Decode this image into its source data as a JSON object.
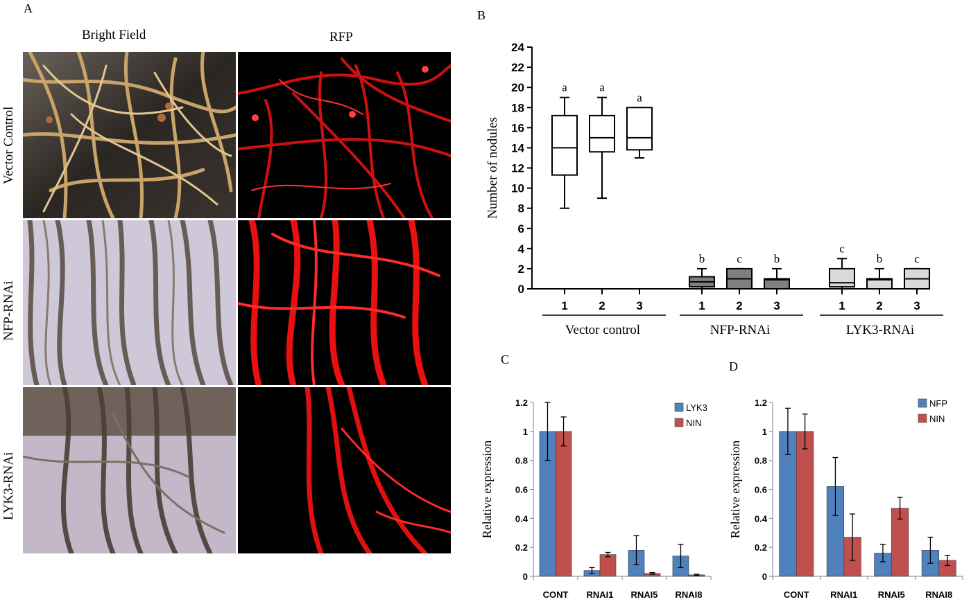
{
  "panels": {
    "a": {
      "letter": "A",
      "col_titles": [
        "Bright Field",
        "RFP"
      ],
      "row_labels": [
        "Vector Control",
        "NFP-RNAi",
        "LYK3-RNAi"
      ]
    },
    "b": {
      "letter": "B"
    },
    "c": {
      "letter": "C"
    },
    "d": {
      "letter": "D"
    }
  },
  "colors": {
    "blue": "#4f81bd",
    "red": "#c0504d",
    "rfp_root": "#e01010",
    "dark_gray_box": "#7f7f7f",
    "light_gray_box": "#d9d9d9",
    "bright_field_bg_row1": "#2a2622",
    "bright_field_bg_row2": "#cfc8d8",
    "bright_field_bg_row3": "#c2b8c8"
  },
  "chart_data": [
    {
      "id": "B",
      "type": "box",
      "ylabel": "Number of nodules",
      "ylim": [
        0,
        24
      ],
      "yticks": [
        0,
        2,
        4,
        6,
        8,
        10,
        12,
        14,
        16,
        18,
        20,
        22,
        24
      ],
      "groups": [
        {
          "label": "Vector control",
          "fill": "#ffffff",
          "boxes": [
            {
              "x": "1",
              "min": 8,
              "q1": 11.3,
              "median": 14,
              "q3": 17.2,
              "max": 19,
              "letter": "a"
            },
            {
              "x": "2",
              "min": 9,
              "q1": 13.6,
              "median": 15,
              "q3": 17.2,
              "max": 19,
              "letter": "a"
            },
            {
              "x": "3",
              "min": 13,
              "q1": 13.8,
              "median": 15,
              "q3": 18,
              "max": 18,
              "letter": "a"
            }
          ]
        },
        {
          "label": "NFP-RNAi",
          "fill": "#7f7f7f",
          "boxes": [
            {
              "x": "1",
              "min": 0,
              "q1": 0.2,
              "median": 0.7,
              "q3": 1.2,
              "max": 2,
              "letter": "b"
            },
            {
              "x": "2",
              "min": 0,
              "q1": 0,
              "median": 1,
              "q3": 2,
              "max": 2,
              "letter": "c"
            },
            {
              "x": "3",
              "min": 0,
              "q1": 0,
              "median": 0.9,
              "q3": 1,
              "max": 2,
              "letter": "b"
            }
          ]
        },
        {
          "label": "LYK3-RNAi",
          "fill": "#d9d9d9",
          "boxes": [
            {
              "x": "1",
              "min": 0,
              "q1": 0.2,
              "median": 0.6,
              "q3": 2,
              "max": 3,
              "letter": "c"
            },
            {
              "x": "2",
              "min": 0,
              "q1": 0,
              "median": 0.9,
              "q3": 1,
              "max": 2,
              "letter": "b"
            },
            {
              "x": "3",
              "min": 0,
              "q1": 0,
              "median": 1,
              "q3": 2,
              "max": 2,
              "letter": "c"
            }
          ]
        }
      ]
    },
    {
      "id": "C",
      "type": "bar",
      "ylabel": "Relative expression",
      "ylim": [
        0,
        1.2
      ],
      "yticks": [
        "0",
        "0.2",
        "0.4",
        "0.6",
        "0.8",
        "1",
        "1.2"
      ],
      "categories": [
        "CONT",
        "RNAI1",
        "RNAI5",
        "RNAI8"
      ],
      "series": [
        {
          "name": "LYK3",
          "color": "#4f81bd",
          "values": [
            1,
            0.04,
            0.18,
            0.14
          ],
          "errors": [
            0.2,
            0.02,
            0.1,
            0.08
          ]
        },
        {
          "name": "NIN",
          "color": "#c0504d",
          "values": [
            1,
            0.15,
            0.02,
            0.01
          ],
          "errors": [
            0.1,
            0.015,
            0.006,
            0.004
          ]
        }
      ],
      "legend": "top-right"
    },
    {
      "id": "D",
      "type": "bar",
      "ylabel": "Relative expression",
      "ylim": [
        0,
        1.2
      ],
      "yticks": [
        "0",
        "0.2",
        "0.4",
        "0.6",
        "0.8",
        "1",
        "1.2"
      ],
      "categories": [
        "CONT",
        "RNAI1",
        "RNAI5",
        "RNAI8"
      ],
      "series": [
        {
          "name": "NFP",
          "color": "#4f81bd",
          "values": [
            1,
            0.62,
            0.16,
            0.18
          ],
          "errors": [
            0.16,
            0.2,
            0.06,
            0.09
          ]
        },
        {
          "name": "NIN",
          "color": "#c0504d",
          "values": [
            1,
            0.27,
            0.47,
            0.11
          ],
          "errors": [
            0.12,
            0.16,
            0.075,
            0.035
          ]
        }
      ],
      "legend": "top-right"
    }
  ]
}
